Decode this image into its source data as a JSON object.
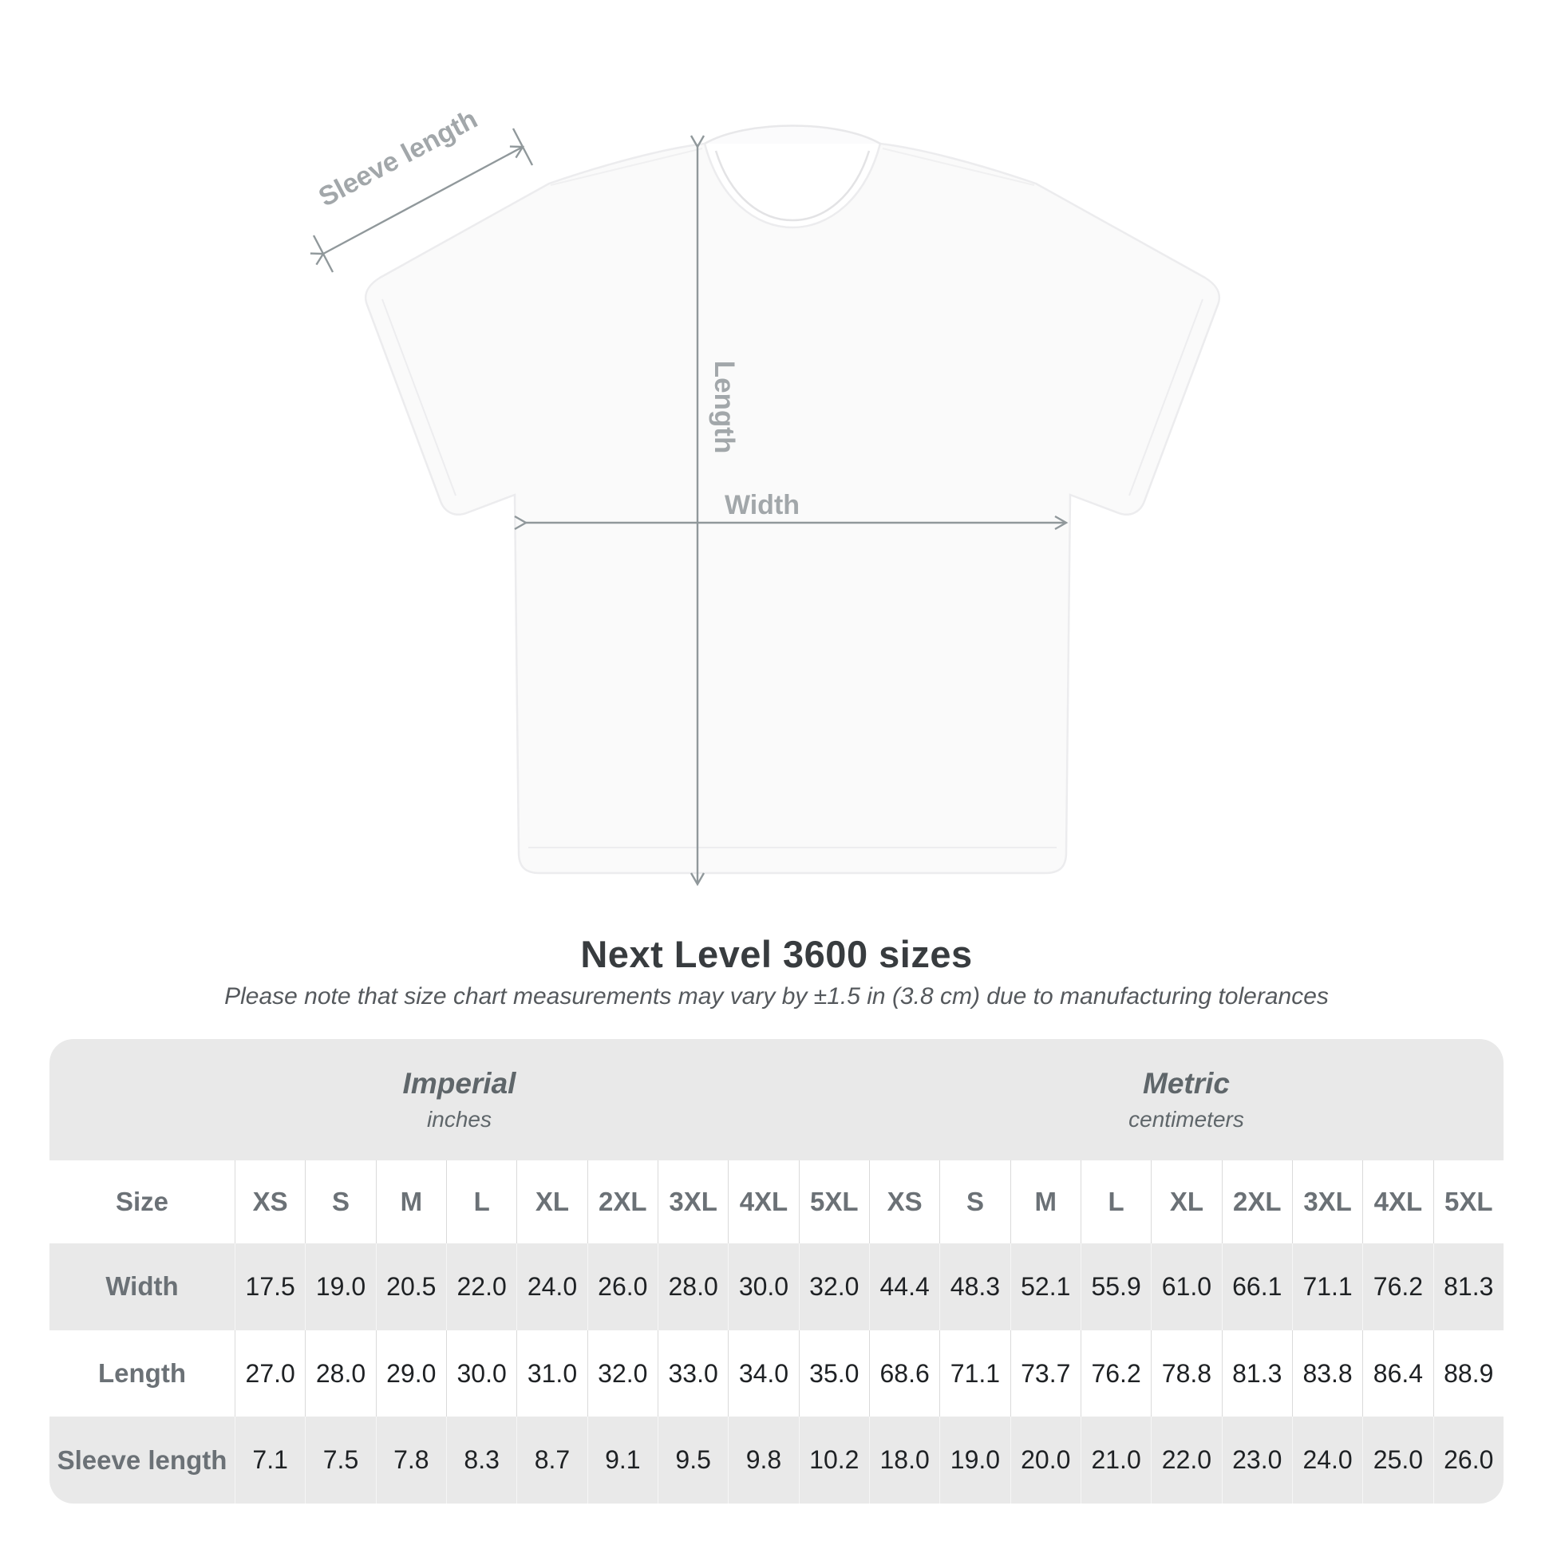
{
  "diagram": {
    "sleeve_length_label": "Sleeve length",
    "length_label": "Length",
    "width_label": "Width"
  },
  "chart_data": {
    "type": "table",
    "title": "Next Level 3600 sizes",
    "note": "Please note that size chart measurements may vary by ±1.5 in (3.8 cm) due to manufacturing tolerances",
    "column_groups": [
      "Imperial (inches)",
      "Metric (centimeters)"
    ],
    "groups": [
      {
        "label": "Imperial",
        "unit": "inches"
      },
      {
        "label": "Metric",
        "unit": "centimeters"
      }
    ],
    "corner_header": "Size",
    "sizes": [
      "XS",
      "S",
      "M",
      "L",
      "XL",
      "2XL",
      "3XL",
      "4XL",
      "5XL"
    ],
    "rows": [
      {
        "label": "Width",
        "imperial": [
          "17.5",
          "19.0",
          "20.5",
          "22.0",
          "24.0",
          "26.0",
          "28.0",
          "30.0",
          "32.0"
        ],
        "metric": [
          "44.4",
          "48.3",
          "52.1",
          "55.9",
          "61.0",
          "66.1",
          "71.1",
          "76.2",
          "81.3"
        ]
      },
      {
        "label": "Length",
        "imperial": [
          "27.0",
          "28.0",
          "29.0",
          "30.0",
          "31.0",
          "32.0",
          "33.0",
          "34.0",
          "35.0"
        ],
        "metric": [
          "68.6",
          "71.1",
          "73.7",
          "76.2",
          "78.8",
          "81.3",
          "83.8",
          "86.4",
          "88.9"
        ]
      },
      {
        "label": "Sleeve length",
        "imperial": [
          "7.1",
          "7.5",
          "7.8",
          "8.3",
          "8.7",
          "9.1",
          "9.5",
          "9.8",
          "10.2"
        ],
        "metric": [
          "18.0",
          "19.0",
          "20.0",
          "21.0",
          "22.0",
          "23.0",
          "24.0",
          "25.0",
          "26.0"
        ]
      }
    ],
    "layout": {
      "legend": "none",
      "grid": "column-separators"
    }
  },
  "colors": {
    "background": "#ffffff",
    "band_gray": "#e9e9e9",
    "shade_row_gray": "#e9e9e9",
    "separator_on_white": "#dadada",
    "separator_on_gray": "#f6f6f6",
    "header_text": "#6b7176",
    "value_text": "#1e2124",
    "title_text": "#383c3f",
    "subtitle_text": "#55595d",
    "measure_line": "#90989b",
    "measure_label": "#a2a7aa",
    "shirt_fill": "#fafafa",
    "shirt_outline": "#ececee"
  }
}
